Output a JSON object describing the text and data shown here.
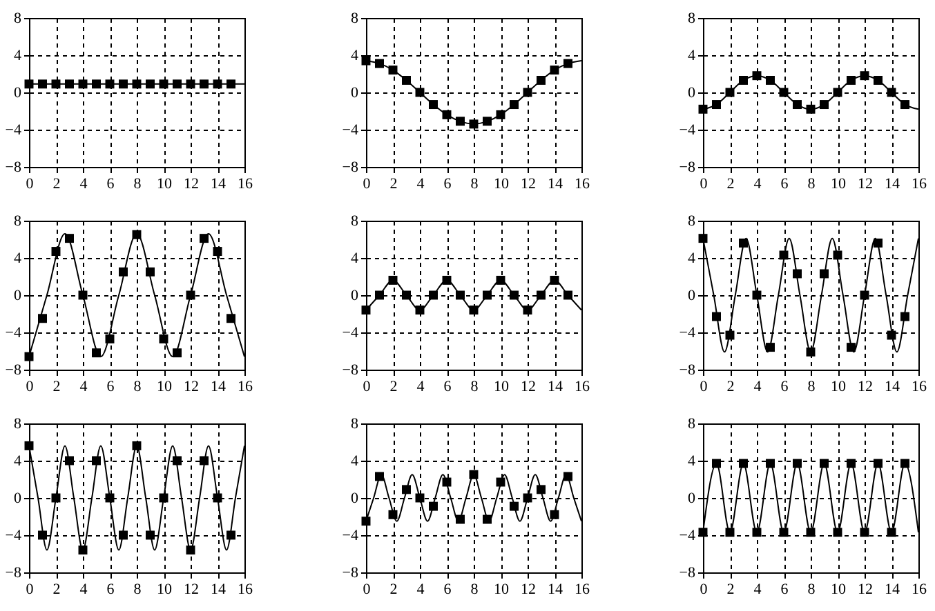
{
  "chart_data": [
    {
      "type": "scatter",
      "xlim": [
        0,
        16
      ],
      "ylim": [
        -8,
        8
      ],
      "xticks": [
        0,
        2,
        4,
        6,
        8,
        10,
        12,
        14,
        16
      ],
      "yticks": [
        -8,
        -4,
        0,
        4,
        8
      ],
      "grid": true,
      "marker": "square",
      "series": [
        {
          "type": "line",
          "marker": "none",
          "color": "#000000",
          "x": [
            0,
            16
          ],
          "values": [
            0.9,
            0.9
          ]
        },
        {
          "color": "#000000",
          "x": [
            0,
            1,
            2,
            3,
            4,
            5,
            6,
            7,
            8,
            9,
            10,
            11,
            12,
            13,
            14,
            15
          ],
          "values": [
            0.9,
            0.9,
            0.9,
            0.9,
            0.9,
            0.9,
            0.9,
            0.9,
            0.9,
            0.9,
            0.9,
            0.9,
            0.9,
            0.9,
            0.9,
            0.9
          ]
        }
      ]
    },
    {
      "type": "scatter",
      "xlim": [
        0,
        16
      ],
      "ylim": [
        -8,
        8
      ],
      "xticks": [
        0,
        2,
        4,
        6,
        8,
        10,
        12,
        14,
        16
      ],
      "yticks": [
        -8,
        -4,
        0,
        4,
        8
      ],
      "grid": true,
      "marker": "square",
      "series": [
        {
          "type": "line",
          "marker": "none",
          "color": "#000000",
          "x": [
            0,
            1,
            2,
            3,
            4,
            5,
            6,
            7,
            8,
            9,
            10,
            11,
            12,
            13,
            14,
            15,
            16
          ],
          "values": [
            3.4,
            3.1,
            2.4,
            1.3,
            0,
            -1.3,
            -2.4,
            -3.1,
            -3.4,
            -3.1,
            -2.4,
            -1.3,
            0,
            1.3,
            2.4,
            3.1,
            3.4
          ]
        },
        {
          "color": "#000000",
          "x": [
            0,
            1,
            2,
            3,
            4,
            5,
            6,
            7,
            8,
            9,
            10,
            11,
            12,
            13,
            14,
            15
          ],
          "values": [
            3.4,
            3.1,
            2.4,
            1.3,
            0,
            -1.3,
            -2.4,
            -3.1,
            -3.4,
            -3.1,
            -2.4,
            -1.3,
            0,
            1.3,
            2.4,
            3.1
          ]
        }
      ]
    },
    {
      "type": "scatter",
      "xlim": [
        0,
        16
      ],
      "ylim": [
        -8,
        8
      ],
      "xticks": [
        0,
        2,
        4,
        6,
        8,
        10,
        12,
        14,
        16
      ],
      "yticks": [
        -8,
        -4,
        0,
        4,
        8
      ],
      "grid": true,
      "marker": "square",
      "series": [
        {
          "type": "line",
          "marker": "none",
          "color": "#000000",
          "x": [
            0,
            1,
            2,
            3,
            4,
            5,
            6,
            7,
            8,
            9,
            10,
            11,
            12,
            13,
            14,
            15,
            16
          ],
          "values": [
            -1.8,
            -1.3,
            0,
            1.3,
            1.8,
            1.3,
            0,
            -1.3,
            -1.8,
            -1.3,
            0,
            1.3,
            1.8,
            1.3,
            0,
            -1.3,
            -1.8
          ]
        },
        {
          "color": "#000000",
          "x": [
            0,
            1,
            2,
            3,
            4,
            5,
            6,
            7,
            8,
            9,
            10,
            11,
            12,
            13,
            14,
            15
          ],
          "values": [
            -1.8,
            -1.3,
            0,
            1.3,
            1.8,
            1.3,
            0,
            -1.3,
            -1.8,
            -1.3,
            0,
            1.3,
            1.8,
            1.3,
            0,
            -1.3
          ]
        }
      ]
    },
    {
      "type": "scatter",
      "xlim": [
        0,
        16
      ],
      "ylim": [
        -8,
        8
      ],
      "xticks": [
        0,
        2,
        4,
        6,
        8,
        10,
        12,
        14,
        16
      ],
      "yticks": [
        -8,
        -4,
        0,
        4,
        8
      ],
      "grid": true,
      "marker": "square",
      "series": [
        {
          "type": "line",
          "marker": "none",
          "color": "#000000",
          "x": [
            0,
            1.33,
            2.67,
            4,
            5.33,
            6.67,
            8,
            9.33,
            10.67,
            12,
            13.33,
            14.67,
            16
          ],
          "values": [
            -6.6,
            0,
            6.6,
            0,
            -6.6,
            0,
            6.6,
            0,
            -6.6,
            0,
            6.6,
            0,
            -6.6
          ]
        },
        {
          "color": "#000000",
          "x": [
            0,
            1,
            2,
            3,
            4,
            5,
            6,
            7,
            8,
            9,
            10,
            11,
            12,
            13,
            14,
            15
          ],
          "values": [
            -6.6,
            -2.5,
            4.7,
            6.1,
            0,
            -6.2,
            -4.7,
            2.5,
            6.5,
            2.5,
            -4.7,
            -6.2,
            0,
            6.1,
            4.7,
            -2.5
          ]
        }
      ]
    },
    {
      "type": "scatter",
      "xlim": [
        0,
        16
      ],
      "ylim": [
        -8,
        8
      ],
      "xticks": [
        0,
        2,
        4,
        6,
        8,
        10,
        12,
        14,
        16
      ],
      "yticks": [
        -8,
        -4,
        0,
        4,
        8
      ],
      "grid": true,
      "marker": "square",
      "series": [
        {
          "type": "line",
          "marker": "none",
          "color": "#000000",
          "x": [
            0,
            1,
            2,
            3,
            4,
            5,
            6,
            7,
            8,
            9,
            10,
            11,
            12,
            13,
            14,
            15,
            16
          ],
          "values": [
            -1.6,
            0,
            1.6,
            0,
            -1.6,
            0,
            1.6,
            0,
            -1.6,
            0,
            1.6,
            0,
            -1.6,
            0,
            1.6,
            0,
            -1.6
          ]
        },
        {
          "color": "#000000",
          "x": [
            0,
            1,
            2,
            3,
            4,
            5,
            6,
            7,
            8,
            9,
            10,
            11,
            12,
            13,
            14,
            15
          ],
          "values": [
            -1.6,
            0,
            1.6,
            0,
            -1.6,
            0,
            1.6,
            0,
            -1.6,
            0,
            1.6,
            0,
            -1.6,
            0,
            1.6,
            0
          ]
        }
      ]
    },
    {
      "type": "scatter",
      "xlim": [
        0,
        16
      ],
      "ylim": [
        -8,
        8
      ],
      "xticks": [
        0,
        2,
        4,
        6,
        8,
        10,
        12,
        14,
        16
      ],
      "yticks": [
        -8,
        -4,
        0,
        4,
        8
      ],
      "grid": true,
      "marker": "square",
      "series": [
        {
          "type": "line",
          "marker": "none",
          "color": "#000000",
          "x": [
            0,
            0.8,
            1.6,
            2.4,
            3.2,
            4,
            4.8,
            5.6,
            6.4,
            7.2,
            8,
            8.8,
            9.6,
            10.4,
            11.2,
            12,
            12.8,
            13.6,
            14.4,
            15.2,
            16
          ],
          "values": [
            6.1,
            0,
            -6.1,
            0,
            6.1,
            0,
            -6.1,
            0,
            6.1,
            0,
            -6.1,
            0,
            6.1,
            0,
            -6.1,
            0,
            6.1,
            0,
            -6.1,
            0,
            6.1
          ]
        },
        {
          "color": "#000000",
          "x": [
            0,
            1,
            2,
            3,
            4,
            5,
            6,
            7,
            8,
            9,
            10,
            11,
            12,
            13,
            14,
            15
          ],
          "values": [
            6.1,
            -2.3,
            -4.3,
            5.6,
            0,
            -5.6,
            4.3,
            2.3,
            -6.1,
            2.3,
            4.3,
            -5.6,
            0,
            5.6,
            -4.3,
            -2.3
          ]
        }
      ]
    },
    {
      "type": "scatter",
      "xlim": [
        0,
        16
      ],
      "ylim": [
        -8,
        8
      ],
      "xticks": [
        0,
        2,
        4,
        6,
        8,
        10,
        12,
        14,
        16
      ],
      "yticks": [
        -8,
        -4,
        0,
        4,
        8
      ],
      "grid": true,
      "marker": "square",
      "series": [
        {
          "type": "line",
          "marker": "none",
          "color": "#000000",
          "x": [
            0,
            0.67,
            1.33,
            2,
            2.67,
            3.33,
            4,
            4.67,
            5.33,
            6,
            6.67,
            7.33,
            8,
            8.67,
            9.33,
            10,
            10.67,
            11.33,
            12,
            12.67,
            13.33,
            14,
            14.67,
            15.33,
            16
          ],
          "values": [
            5.6,
            0,
            -5.6,
            0,
            5.6,
            0,
            -5.6,
            0,
            5.6,
            0,
            -5.6,
            0,
            5.6,
            0,
            -5.6,
            0,
            5.6,
            0,
            -5.6,
            0,
            5.6,
            0,
            -5.6,
            0,
            5.6
          ]
        },
        {
          "color": "#000000",
          "x": [
            0,
            1,
            2,
            3,
            4,
            5,
            6,
            7,
            8,
            9,
            10,
            11,
            12,
            13,
            14,
            15
          ],
          "values": [
            5.6,
            -4,
            0,
            4,
            -5.6,
            4,
            0,
            -4,
            5.6,
            -4,
            0,
            4,
            -5.6,
            4,
            0,
            -4
          ]
        }
      ]
    },
    {
      "type": "scatter",
      "xlim": [
        0,
        16
      ],
      "ylim": [
        -8,
        8
      ],
      "xticks": [
        0,
        2,
        4,
        6,
        8,
        10,
        12,
        14,
        16
      ],
      "yticks": [
        -8,
        -4,
        0,
        4,
        8
      ],
      "grid": true,
      "marker": "square",
      "series": [
        {
          "type": "line",
          "marker": "none",
          "color": "#000000",
          "x": [
            0,
            0.57,
            1.14,
            1.71,
            2.29,
            2.86,
            3.43,
            4,
            4.57,
            5.14,
            5.71,
            6.29,
            6.86,
            7.43,
            8,
            8.57,
            9.14,
            9.71,
            10.29,
            10.86,
            11.43,
            12,
            12.57,
            13.14,
            13.71,
            14.29,
            14.86,
            15.43,
            16
          ],
          "values": [
            -2.5,
            0,
            2.5,
            0,
            -2.5,
            0,
            2.5,
            0,
            -2.5,
            0,
            2.5,
            0,
            -2.5,
            0,
            2.5,
            0,
            -2.5,
            0,
            2.5,
            0,
            -2.5,
            0,
            2.5,
            0,
            -2.5,
            0,
            2.5,
            0,
            -2.5
          ]
        },
        {
          "color": "#000000",
          "x": [
            0,
            1,
            2,
            3,
            4,
            5,
            6,
            7,
            8,
            9,
            10,
            11,
            12,
            13,
            14,
            15
          ],
          "values": [
            -2.5,
            2.3,
            -1.8,
            0.9,
            0,
            -0.9,
            1.7,
            -2.3,
            2.5,
            -2.3,
            1.7,
            -0.9,
            0,
            0.9,
            -1.8,
            2.3
          ]
        }
      ]
    },
    {
      "type": "scatter",
      "xlim": [
        0,
        16
      ],
      "ylim": [
        -8,
        8
      ],
      "xticks": [
        0,
        2,
        4,
        6,
        8,
        10,
        12,
        14,
        16
      ],
      "yticks": [
        -8,
        -4,
        0,
        4,
        8
      ],
      "grid": true,
      "marker": "square",
      "series": [
        {
          "type": "line",
          "marker": "none",
          "color": "#000000",
          "x": [
            0,
            1,
            2,
            3,
            4,
            5,
            6,
            7,
            8,
            9,
            10,
            11,
            12,
            13,
            14,
            15,
            16
          ],
          "values": [
            -3.7,
            3.7,
            -3.7,
            3.7,
            -3.7,
            3.7,
            -3.7,
            3.7,
            -3.7,
            3.7,
            -3.7,
            3.7,
            -3.7,
            3.7,
            -3.7,
            3.7,
            -3.7
          ]
        },
        {
          "color": "#000000",
          "x": [
            0,
            1,
            2,
            3,
            4,
            5,
            6,
            7,
            8,
            9,
            10,
            11,
            12,
            13,
            14,
            15
          ],
          "values": [
            -3.7,
            3.7,
            -3.7,
            3.7,
            -3.7,
            3.7,
            -3.7,
            3.7,
            -3.7,
            3.7,
            -3.7,
            3.7,
            -3.7,
            3.7,
            -3.7,
            3.7
          ]
        }
      ]
    }
  ]
}
